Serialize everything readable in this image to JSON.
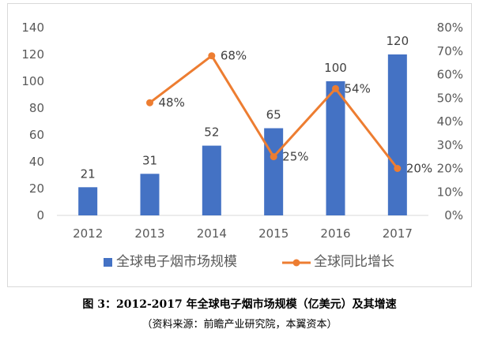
{
  "chart_data": {
    "type": "bar",
    "categories": [
      "2012",
      "2013",
      "2014",
      "2015",
      "2016",
      "2017"
    ],
    "series": [
      {
        "name": "全球电子烟市场规模",
        "type": "bar",
        "axis": "left",
        "color": "#4472c4",
        "values": [
          21,
          31,
          52,
          65,
          100,
          120
        ],
        "labels": [
          "21",
          "31",
          "52",
          "65",
          "100",
          "120"
        ]
      },
      {
        "name": "全球同比增长",
        "type": "line",
        "axis": "right",
        "color": "#ed7d31",
        "values": [
          null,
          48,
          68,
          25,
          54,
          20
        ],
        "labels": [
          null,
          "48%",
          "68%",
          "25%",
          "54%",
          "20%"
        ]
      }
    ],
    "y_left": {
      "min": 0,
      "max": 140,
      "ticks": [
        "0",
        "20",
        "40",
        "60",
        "80",
        "100",
        "120",
        "140"
      ]
    },
    "y_right": {
      "min": 0,
      "max": 80,
      "ticks": [
        "0%",
        "10%",
        "20%",
        "30%",
        "40%",
        "50%",
        "60%",
        "70%",
        "80%"
      ]
    },
    "legend_position": "bottom",
    "grid": false
  },
  "caption": "图 3：2012-2017 年全球电子烟市场规模（亿美元）及其增速",
  "source": "（资料来源：前瞻产业研究院，本翼资本）"
}
